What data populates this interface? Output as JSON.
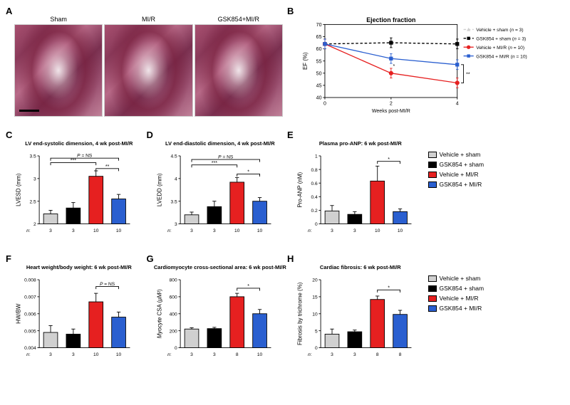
{
  "colors": {
    "vehicle_sham": "#d0d0d0",
    "gsk_sham": "#000000",
    "vehicle_mir": "#e62020",
    "gsk_mir": "#2a5fd0",
    "axis": "#000000",
    "bg": "#ffffff"
  },
  "groups": {
    "short": [
      "Vehicle + sham",
      "GSK854 + sham",
      "Vehicle + MI/R",
      "GSK854 + MI/R"
    ]
  },
  "A": {
    "labels": [
      "Sham",
      "MI/R",
      "GSK854+MI/R"
    ]
  },
  "B": {
    "title": "Ejection fraction",
    "ylabel": "EF (%)",
    "xlabel": "Weeks post-MI/R",
    "xticks": [
      0,
      2,
      4
    ],
    "ylim": [
      40,
      70
    ],
    "yticks": [
      40,
      45,
      50,
      55,
      60,
      65,
      70
    ],
    "series": [
      {
        "name": "Vehicle + sham",
        "n": 3,
        "color": "#d0d0d0",
        "dash": "4,3",
        "marker": "triangle",
        "y": [
          62,
          62.5,
          62
        ],
        "err": [
          2,
          2,
          2
        ]
      },
      {
        "name": "GSK854 + sham",
        "n": 3,
        "color": "#000000",
        "dash": "4,3",
        "marker": "square",
        "y": [
          62,
          62.5,
          62
        ],
        "err": [
          2,
          2,
          2
        ]
      },
      {
        "name": "Vehicle + MI/R",
        "n": 10,
        "color": "#e62020",
        "dash": "",
        "marker": "circle",
        "y": [
          62,
          50,
          46
        ],
        "err": [
          2,
          2,
          2
        ]
      },
      {
        "name": "GSK854 + MI/R",
        "n": 10,
        "color": "#2a5fd0",
        "dash": "",
        "marker": "square",
        "y": [
          62,
          56,
          53.5
        ],
        "err": [
          2,
          2,
          2
        ]
      }
    ],
    "sig": [
      {
        "x": 2,
        "label": "*"
      },
      {
        "x": 4,
        "label": "**",
        "brace": true
      }
    ]
  },
  "C": {
    "title": "LV end-systolic dimension, 4 wk post-MI/R",
    "ylabel": "LVESD (mm)",
    "ylim": [
      2.0,
      3.5
    ],
    "yticks": [
      2.0,
      2.5,
      3.0,
      3.5
    ],
    "n": [
      3,
      3,
      10,
      10
    ],
    "values": [
      2.22,
      2.35,
      3.05,
      2.55
    ],
    "err": [
      0.08,
      0.12,
      0.12,
      0.1
    ],
    "sig_text": "P = NS",
    "sig_lines": [
      {
        "from": 0,
        "to": 2,
        "label": "***",
        "y": 3.35
      },
      {
        "from": 2,
        "to": 3,
        "label": "**",
        "y": 3.22
      }
    ],
    "sig_ns": {
      "from": 0,
      "to": 3,
      "y": 3.45
    }
  },
  "D": {
    "title": "LV end-diastolic dimension, 4 wk post-MI/R",
    "ylabel": "LVEDD (mm)",
    "ylim": [
      3.0,
      4.5
    ],
    "yticks": [
      3.0,
      3.5,
      4.0,
      4.5
    ],
    "n": [
      3,
      3,
      10,
      10
    ],
    "values": [
      3.2,
      3.38,
      3.92,
      3.5
    ],
    "err": [
      0.06,
      0.12,
      0.1,
      0.08
    ],
    "sig_lines": [
      {
        "from": 0,
        "to": 2,
        "label": "***",
        "y": 4.3
      },
      {
        "from": 2,
        "to": 3,
        "label": "*",
        "y": 4.1
      }
    ],
    "sig_ns": {
      "from": 0,
      "to": 3,
      "y": 4.42
    },
    "sig_text": "P = NS"
  },
  "E": {
    "title": "Plasma pro-ANP: 6 wk post-MI/R",
    "ylabel": "Pro-ANP (nM)",
    "ylim": [
      0.0,
      1.0
    ],
    "yticks": [
      0.0,
      0.2,
      0.4,
      0.6,
      0.8,
      1.0
    ],
    "n": [
      3,
      3,
      10,
      10
    ],
    "values": [
      0.19,
      0.14,
      0.63,
      0.18
    ],
    "err": [
      0.08,
      0.04,
      0.22,
      0.04
    ],
    "sig_lines": [
      {
        "from": 2,
        "to": 3,
        "label": "*",
        "y": 0.92
      }
    ]
  },
  "F": {
    "title": "Heart weight/body weight: 6 wk post-MI/R",
    "ylabel": "HW/BW",
    "ylim": [
      0.004,
      0.008
    ],
    "yticks": [
      0.004,
      0.005,
      0.006,
      0.007,
      0.008
    ],
    "n": [
      3,
      3,
      10,
      10
    ],
    "values": [
      0.0049,
      0.0048,
      0.0067,
      0.0058
    ],
    "err": [
      0.0004,
      0.0003,
      0.0005,
      0.0003
    ],
    "sig_lines": [
      {
        "from": 2,
        "to": 3,
        "label": "P = NS",
        "y": 0.0076,
        "textlabel": true
      }
    ]
  },
  "G": {
    "title": "Cardiomyocyte cross-sectional area: 6 wk post-MI/R",
    "ylabel": "Myocyte CSA (μM²)",
    "ylabel_italic_part": "Myocyte",
    "ylim": [
      0,
      800
    ],
    "yticks": [
      0,
      200,
      400,
      600,
      800
    ],
    "n": [
      3,
      3,
      8,
      10
    ],
    "values": [
      220,
      225,
      600,
      400
    ],
    "err": [
      15,
      15,
      40,
      50
    ],
    "sig_lines": [
      {
        "from": 2,
        "to": 3,
        "label": "*",
        "y": 700
      }
    ]
  },
  "H": {
    "title": "Cardiac fibrosis: 6 wk post-MI/R",
    "ylabel": "Fibrosis by trichrome (%)",
    "ylim": [
      0,
      20
    ],
    "yticks": [
      0,
      5,
      10,
      15,
      20
    ],
    "n": [
      3,
      3,
      8,
      8
    ],
    "values": [
      4.0,
      4.7,
      14.2,
      9.8
    ],
    "err": [
      1.5,
      0.5,
      1.0,
      1.2
    ],
    "sig_lines": [
      {
        "from": 2,
        "to": 3,
        "label": "*",
        "y": 17
      }
    ]
  },
  "n_label": "n:"
}
